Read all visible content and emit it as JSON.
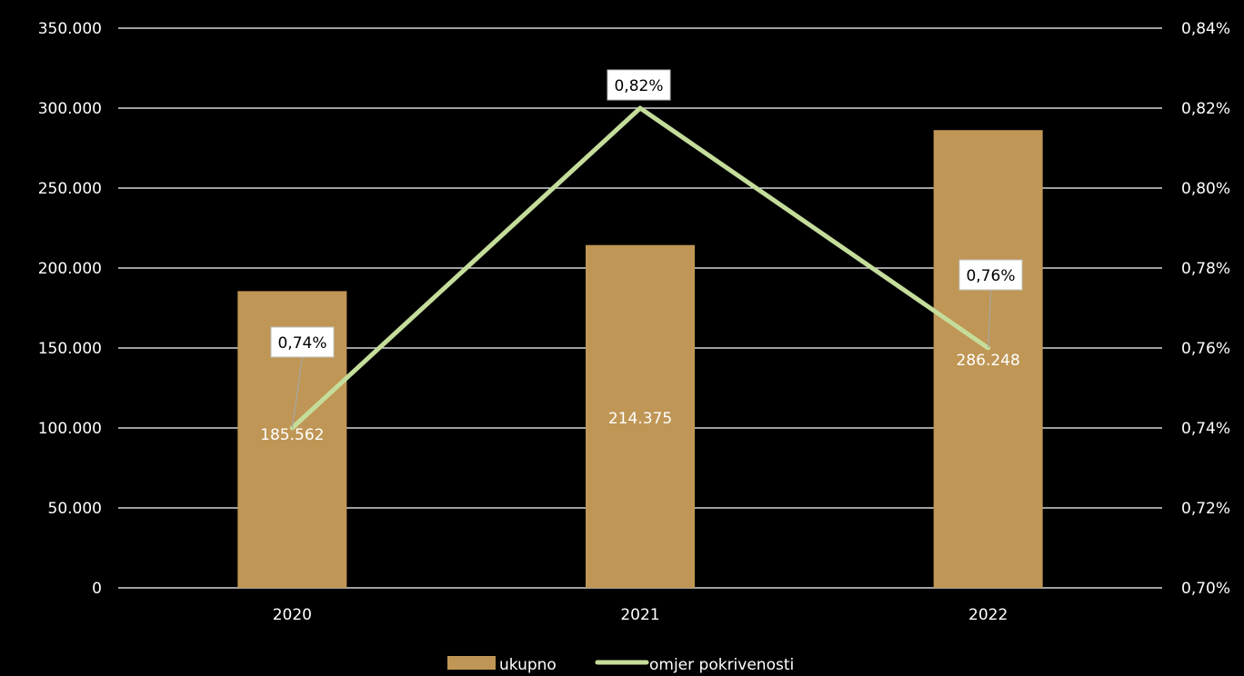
{
  "chart_data": {
    "type": "bar",
    "categories": [
      "2020",
      "2021",
      "2022"
    ],
    "series": [
      {
        "name": "ukupno",
        "type": "bar",
        "axis": "left",
        "values": [
          185562,
          214375,
          286248
        ],
        "labels": [
          "185.562",
          "214.375",
          "286.248"
        ],
        "color": "#bf9655"
      },
      {
        "name": "omjer pokrivenosti",
        "type": "line",
        "axis": "right",
        "values": [
          0.74,
          0.82,
          0.76
        ],
        "labels": [
          "0,74%",
          "0,82%",
          "0,76%"
        ],
        "color": "#c5dd9b"
      }
    ],
    "y_left": {
      "range": [
        0,
        350000
      ],
      "ticks": [
        "0",
        "50.000",
        "100.000",
        "150.000",
        "200.000",
        "250.000",
        "300.000",
        "350.000"
      ]
    },
    "y_right": {
      "range": [
        0.7,
        0.84
      ],
      "ticks": [
        "0,70%",
        "0,72%",
        "0,74%",
        "0,76%",
        "0,78%",
        "0,80%",
        "0,82%",
        "0,84%"
      ]
    },
    "grid": true,
    "legend_position": "bottom",
    "background": "#000000",
    "gridline_color": "#ffffff"
  }
}
